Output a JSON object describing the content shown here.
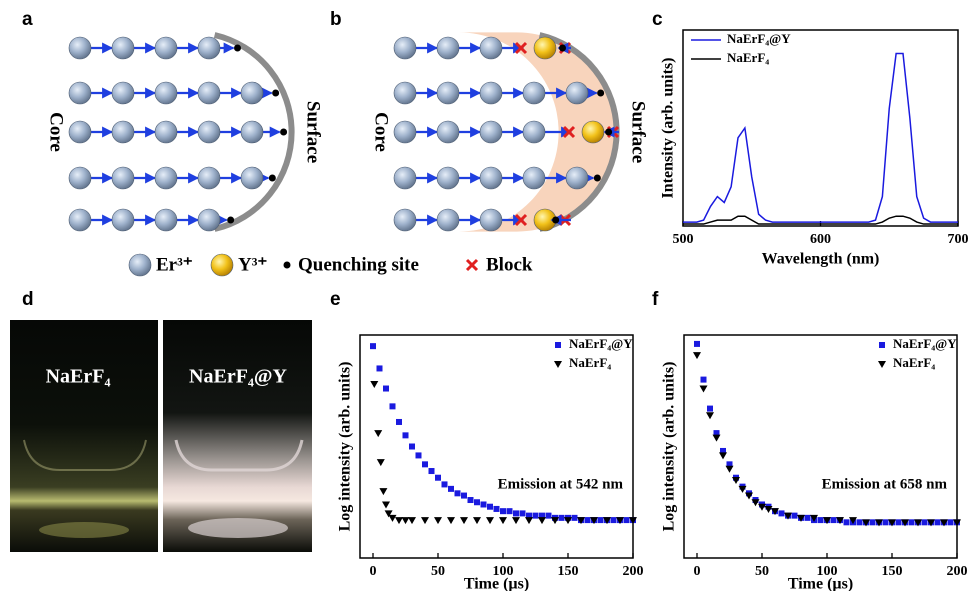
{
  "panels": [
    "a",
    "b",
    "c",
    "d",
    "e",
    "f"
  ],
  "diagram": {
    "core": "Core",
    "surface": "Surface",
    "legend": [
      "Er³⁺",
      "Y³⁺",
      "Quenching site",
      "Block"
    ]
  },
  "photo": {
    "left": "NaErF₄",
    "right": "NaErF₄@Y"
  },
  "chart_data": [
    {
      "type": "line",
      "xlabel": "Wavelength (nm)",
      "ylabel": "Intensity (arb. units)",
      "xlim": [
        500,
        700
      ],
      "xticks": [
        500,
        600,
        700
      ],
      "ylim": [
        0,
        1
      ],
      "legend": "upper left",
      "x": [
        500,
        505,
        510,
        515,
        520,
        525,
        530,
        535,
        540,
        545,
        550,
        555,
        560,
        565,
        570,
        575,
        580,
        585,
        590,
        595,
        600,
        605,
        610,
        615,
        620,
        625,
        630,
        635,
        640,
        645,
        650,
        655,
        660,
        665,
        670,
        675,
        680,
        685,
        690,
        695,
        700
      ],
      "series": [
        {
          "name": "NaErF₄@Y",
          "color": "#1a1adf",
          "marker": "line",
          "values": [
            0.02,
            0.02,
            0.02,
            0.03,
            0.1,
            0.15,
            0.12,
            0.2,
            0.45,
            0.5,
            0.25,
            0.06,
            0.03,
            0.02,
            0.02,
            0.02,
            0.02,
            0.02,
            0.02,
            0.02,
            0.02,
            0.02,
            0.02,
            0.02,
            0.02,
            0.02,
            0.02,
            0.02,
            0.03,
            0.15,
            0.6,
            0.88,
            0.88,
            0.55,
            0.15,
            0.04,
            0.02,
            0.02,
            0.02,
            0.02,
            0.02
          ]
        },
        {
          "name": "NaErF₄",
          "color": "#000000",
          "marker": "line",
          "values": [
            0.01,
            0.01,
            0.01,
            0.01,
            0.02,
            0.03,
            0.03,
            0.03,
            0.05,
            0.05,
            0.03,
            0.01,
            0.01,
            0.01,
            0.01,
            0.01,
            0.01,
            0.01,
            0.01,
            0.01,
            0.01,
            0.01,
            0.01,
            0.01,
            0.01,
            0.01,
            0.01,
            0.01,
            0.01,
            0.02,
            0.04,
            0.05,
            0.05,
            0.04,
            0.02,
            0.01,
            0.01,
            0.01,
            0.01,
            0.01,
            0.01
          ]
        }
      ]
    },
    {
      "type": "scatter",
      "xlabel": "Time (µs)",
      "ylabel": "Log intensity (arb. units)",
      "annotation": "Emission at 542 nm",
      "xlim": [
        -10,
        200
      ],
      "xticks": [
        0,
        50,
        100,
        150,
        200
      ],
      "ylim": [
        0,
        1
      ],
      "legend": "upper right",
      "series": [
        {
          "name": "NaErF₄@Y",
          "color": "#1a1adf",
          "marker": "square",
          "x": [
            0,
            5,
            10,
            15,
            20,
            25,
            30,
            35,
            40,
            45,
            50,
            55,
            60,
            65,
            70,
            75,
            80,
            85,
            90,
            95,
            100,
            105,
            110,
            115,
            120,
            125,
            130,
            135,
            140,
            145,
            150,
            155,
            160,
            165,
            170,
            175,
            180,
            185,
            190,
            195,
            200
          ],
          "values": [
            0.95,
            0.85,
            0.76,
            0.68,
            0.61,
            0.55,
            0.5,
            0.46,
            0.42,
            0.39,
            0.36,
            0.33,
            0.31,
            0.29,
            0.28,
            0.26,
            0.25,
            0.24,
            0.23,
            0.22,
            0.21,
            0.21,
            0.2,
            0.2,
            0.19,
            0.19,
            0.19,
            0.19,
            0.18,
            0.18,
            0.18,
            0.18,
            0.17,
            0.17,
            0.17,
            0.17,
            0.17,
            0.17,
            0.17,
            0.17,
            0.17
          ]
        },
        {
          "name": "NaErF₄",
          "color": "#000000",
          "marker": "triangle",
          "x": [
            1,
            4,
            6,
            8,
            10,
            12,
            15,
            20,
            25,
            30,
            40,
            50,
            60,
            70,
            80,
            90,
            100,
            110,
            120,
            130,
            140,
            150,
            160,
            170,
            180,
            190,
            200
          ],
          "values": [
            0.78,
            0.56,
            0.43,
            0.3,
            0.24,
            0.2,
            0.18,
            0.17,
            0.17,
            0.17,
            0.17,
            0.17,
            0.17,
            0.17,
            0.17,
            0.17,
            0.17,
            0.17,
            0.17,
            0.17,
            0.17,
            0.17,
            0.17,
            0.17,
            0.17,
            0.17,
            0.17
          ]
        }
      ]
    },
    {
      "type": "scatter",
      "xlabel": "Time (µs)",
      "ylabel": "Log intensity (arb. units)",
      "annotation": "Emission at 658 nm",
      "xlim": [
        -10,
        200
      ],
      "xticks": [
        0,
        50,
        100,
        150,
        200
      ],
      "ylim": [
        0,
        1
      ],
      "legend": "upper right",
      "series": [
        {
          "name": "NaErF₄@Y",
          "color": "#1a1adf",
          "marker": "square",
          "x": [
            0,
            5,
            10,
            15,
            20,
            25,
            30,
            35,
            40,
            45,
            50,
            55,
            60,
            65,
            70,
            75,
            80,
            85,
            90,
            95,
            100,
            105,
            110,
            115,
            120,
            125,
            130,
            135,
            140,
            145,
            150,
            155,
            160,
            165,
            170,
            175,
            180,
            185,
            190,
            195,
            200
          ],
          "values": [
            0.96,
            0.8,
            0.67,
            0.56,
            0.48,
            0.42,
            0.36,
            0.32,
            0.29,
            0.26,
            0.24,
            0.23,
            0.21,
            0.2,
            0.19,
            0.19,
            0.18,
            0.18,
            0.17,
            0.17,
            0.17,
            0.17,
            0.17,
            0.16,
            0.16,
            0.16,
            0.16,
            0.16,
            0.16,
            0.16,
            0.16,
            0.16,
            0.16,
            0.16,
            0.16,
            0.16,
            0.16,
            0.16,
            0.16,
            0.16,
            0.16
          ]
        },
        {
          "name": "NaErF₄",
          "color": "#000000",
          "marker": "triangle",
          "x": [
            0,
            5,
            10,
            15,
            20,
            25,
            30,
            35,
            40,
            45,
            50,
            55,
            60,
            70,
            80,
            90,
            100,
            110,
            120,
            130,
            140,
            150,
            160,
            170,
            180,
            190,
            200
          ],
          "values": [
            0.91,
            0.76,
            0.64,
            0.54,
            0.46,
            0.4,
            0.35,
            0.31,
            0.28,
            0.25,
            0.23,
            0.22,
            0.21,
            0.19,
            0.18,
            0.18,
            0.17,
            0.17,
            0.17,
            0.16,
            0.16,
            0.16,
            0.16,
            0.16,
            0.16,
            0.16,
            0.16
          ]
        }
      ]
    }
  ]
}
